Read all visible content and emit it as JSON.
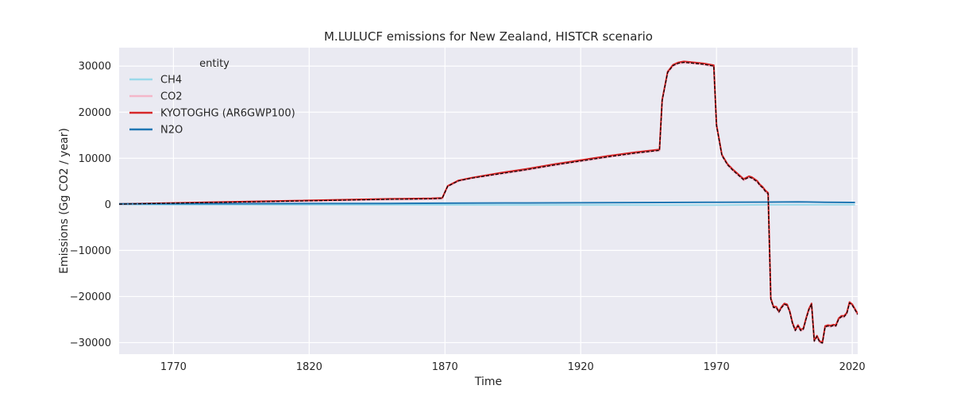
{
  "chart_data": {
    "type": "line",
    "title": "M.LULUCF emissions for New Zealand, HISTCR scenario",
    "xlabel": "Time",
    "ylabel": "Emissions (Gg CO2 / year)",
    "xlim": [
      1750,
      2022
    ],
    "ylim": [
      -32500,
      34000
    ],
    "xticks": [
      1770,
      1820,
      1870,
      1920,
      1970,
      2020
    ],
    "yticks": [
      -30000,
      -20000,
      -10000,
      0,
      10000,
      20000,
      30000
    ],
    "ytick_labels": [
      "−30000",
      "−20000",
      "−10000",
      "0",
      "10000",
      "20000",
      "30000"
    ],
    "grid": true,
    "background": "#eaeaf2",
    "legend": {
      "title": "entity",
      "placement": "top-left",
      "entries": [
        "CH4",
        "CO2",
        "KYOTOGHG (AR6GWP100)",
        "N2O"
      ]
    },
    "series": [
      {
        "name": "CH4",
        "color": "#9bd9ea",
        "x": [
          1750,
          1800,
          1850,
          1870,
          1900,
          1950,
          1970,
          1990,
          2021
        ],
        "y": [
          -60,
          -80,
          -100,
          -120,
          -130,
          -150,
          -150,
          -100,
          -80
        ]
      },
      {
        "name": "CO2",
        "color": "#f4b6c9",
        "x": [
          1750,
          1770,
          1800,
          1850,
          1865,
          1869,
          1871,
          1875,
          1880,
          1890,
          1900,
          1910,
          1920,
          1930,
          1940,
          1949,
          1950,
          1952,
          1954,
          1956,
          1958,
          1960,
          1965,
          1969,
          1970,
          1972,
          1974,
          1976,
          1980,
          1982,
          1983,
          1985,
          1986,
          1987,
          1988,
          1989,
          1990,
          1991,
          1992,
          1993,
          1994,
          1995,
          1996,
          1997,
          1998,
          1999,
          2000,
          2001,
          2002,
          2003,
          2004,
          2005,
          2006,
          2007,
          2008,
          2009,
          2010,
          2011,
          2012,
          2013,
          2014,
          2015,
          2016,
          2017,
          2018,
          2019,
          2020,
          2021,
          2022
        ],
        "y": [
          0,
          200,
          500,
          1000,
          1100,
          1200,
          3800,
          5000,
          5600,
          6500,
          7400,
          8400,
          9300,
          10200,
          11000,
          11600,
          22400,
          28500,
          30000,
          30500,
          30700,
          30600,
          30300,
          29900,
          17000,
          10500,
          8500,
          7300,
          5200,
          5800,
          5600,
          4800,
          4000,
          3500,
          2700,
          2200,
          -20700,
          -22500,
          -22500,
          -23500,
          -22500,
          -21800,
          -22000,
          -23500,
          -26000,
          -27500,
          -26500,
          -27500,
          -27200,
          -25000,
          -23000,
          -21800,
          -29800,
          -28800,
          -30000,
          -30200,
          -26700,
          -26500,
          -26600,
          -26400,
          -26500,
          -25000,
          -24500,
          -24500,
          -23800,
          -21500,
          -22000,
          -23000,
          -24000
        ]
      },
      {
        "name": "KYOTOGHG (AR6GWP100)",
        "color": "#d62728",
        "x": [
          1750,
          1770,
          1800,
          1850,
          1865,
          1869,
          1871,
          1875,
          1880,
          1890,
          1900,
          1910,
          1920,
          1930,
          1940,
          1949,
          1950,
          1952,
          1954,
          1956,
          1958,
          1960,
          1965,
          1969,
          1970,
          1972,
          1974,
          1976,
          1980,
          1982,
          1983,
          1985,
          1986,
          1987,
          1988,
          1989,
          1990,
          1991,
          1992,
          1993,
          1994,
          1995,
          1996,
          1997,
          1998,
          1999,
          2000,
          2001,
          2002,
          2003,
          2004,
          2005,
          2006,
          2007,
          2008,
          2009,
          2010,
          2011,
          2012,
          2013,
          2014,
          2015,
          2016,
          2017,
          2018,
          2019,
          2020,
          2021,
          2022
        ],
        "y": [
          100,
          300,
          650,
          1200,
          1300,
          1400,
          4000,
          5200,
          5800,
          6800,
          7700,
          8700,
          9600,
          10500,
          11300,
          11900,
          22700,
          28800,
          30300,
          30800,
          31000,
          30900,
          30600,
          30200,
          17300,
          10800,
          8800,
          7600,
          5500,
          6100,
          5900,
          5100,
          4300,
          3800,
          3000,
          2500,
          -20400,
          -22200,
          -22200,
          -23200,
          -22200,
          -21500,
          -21700,
          -23200,
          -25700,
          -27200,
          -26200,
          -27200,
          -26900,
          -24700,
          -22700,
          -21500,
          -29500,
          -28500,
          -29700,
          -29900,
          -26400,
          -26200,
          -26300,
          -26100,
          -26200,
          -24700,
          -24200,
          -24200,
          -23500,
          -21200,
          -21700,
          -22700,
          -23700
        ]
      },
      {
        "name": "N2O",
        "color": "#1f77b4",
        "x": [
          1750,
          1800,
          1850,
          1870,
          1900,
          1950,
          1970,
          1990,
          2000,
          2010,
          2021
        ],
        "y": [
          100,
          150,
          200,
          250,
          300,
          400,
          450,
          500,
          550,
          450,
          400
        ]
      },
      {
        "name": "",
        "color": "#000000",
        "dashed": true,
        "x": [
          1750,
          1770,
          1800,
          1850,
          1865,
          1869,
          1871,
          1875,
          1880,
          1890,
          1900,
          1910,
          1920,
          1930,
          1940,
          1949,
          1950,
          1952,
          1954,
          1956,
          1958,
          1960,
          1965,
          1969,
          1970,
          1972,
          1974,
          1976,
          1980,
          1982,
          1983,
          1985,
          1986,
          1987,
          1988,
          1989,
          1990,
          1991,
          1992,
          1993,
          1994,
          1995,
          1996,
          1997,
          1998,
          1999,
          2000,
          2001,
          2002,
          2003,
          2004,
          2005,
          2006,
          2007,
          2008,
          2009,
          2010,
          2011,
          2012,
          2013,
          2014,
          2015,
          2016,
          2017,
          2018,
          2019,
          2020,
          2021,
          2022
        ],
        "y": [
          50,
          250,
          550,
          1100,
          1200,
          1300,
          3900,
          5100,
          5700,
          6600,
          7500,
          8500,
          9400,
          10300,
          11100,
          11700,
          22500,
          28600,
          30100,
          30600,
          30800,
          30700,
          30400,
          30000,
          17100,
          10600,
          8600,
          7400,
          5300,
          5900,
          5700,
          4900,
          4100,
          3600,
          2800,
          2300,
          -20600,
          -22400,
          -22400,
          -23400,
          -22400,
          -21700,
          -21900,
          -23400,
          -25900,
          -27400,
          -26400,
          -27400,
          -27100,
          -24900,
          -22900,
          -21700,
          -29700,
          -28700,
          -29900,
          -30100,
          -26600,
          -26400,
          -26500,
          -26300,
          -26400,
          -24900,
          -24400,
          -24400,
          -23700,
          -21400,
          -21900,
          -22900,
          -23900
        ]
      }
    ]
  }
}
